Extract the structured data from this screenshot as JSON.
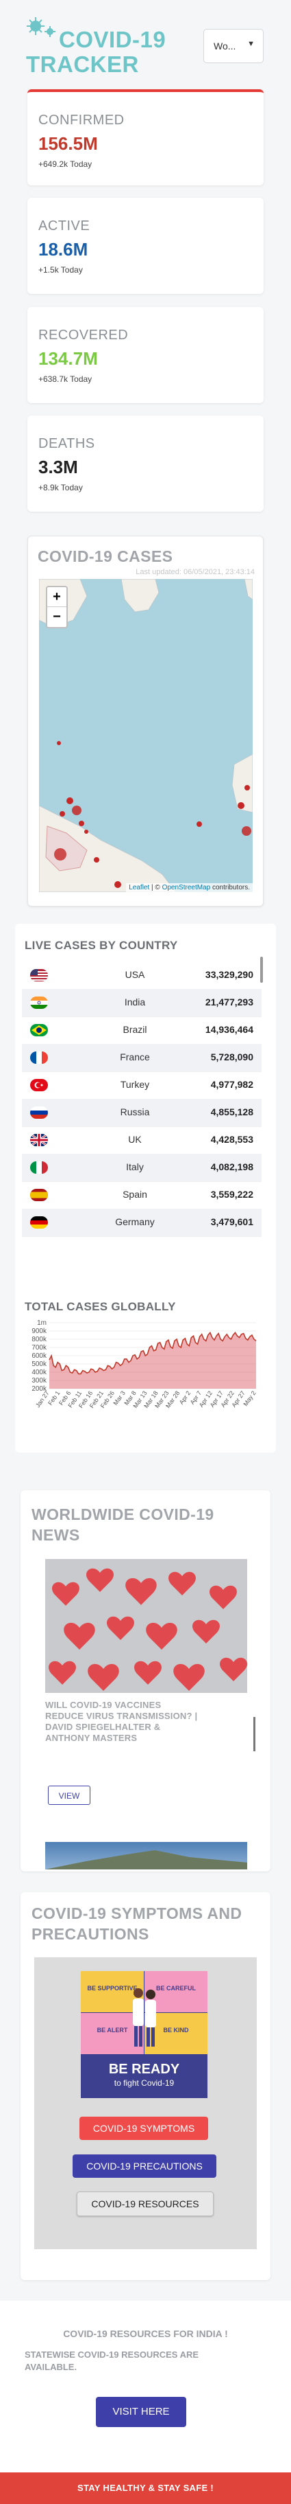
{
  "header": {
    "title_line1": "COVID-19",
    "title_line2": "TRACKER",
    "country_select": "Wo..."
  },
  "stats": [
    {
      "label": "CONFIRMED",
      "value": "156.5M",
      "today": "+649.2k Today",
      "color": "#c0392b"
    },
    {
      "label": "ACTIVE",
      "value": "18.6M",
      "today": "+1.5k Today",
      "color": "#1a5ea8"
    },
    {
      "label": "RECOVERED",
      "value": "134.7M",
      "today": "+638.7k Today",
      "color": "#7ac943"
    },
    {
      "label": "DEATHS",
      "value": "3.3M",
      "today": "+8.9k Today",
      "color": "#222222"
    }
  ],
  "map": {
    "title": "COVID-19 CASES",
    "last_updated": "Last updated: 06/05/2021, 23:43:14",
    "zoom_in": "+",
    "zoom_out": "−",
    "attribution_leaflet": "Leaflet",
    "attribution_sep": " | © ",
    "attribution_osm": "OpenStreetMap",
    "attribution_rest": " contributors."
  },
  "live_cases": {
    "title": "LIVE CASES BY COUNTRY",
    "rows": [
      {
        "country": "USA",
        "count": "33,329,290",
        "flag": "usa-flag-icon"
      },
      {
        "country": "India",
        "count": "21,477,293",
        "flag": "india-flag-icon"
      },
      {
        "country": "Brazil",
        "count": "14,936,464",
        "flag": "brazil-flag-icon"
      },
      {
        "country": "France",
        "count": "5,728,090",
        "flag": "france-flag-icon"
      },
      {
        "country": "Turkey",
        "count": "4,977,982",
        "flag": "turkey-flag-icon"
      },
      {
        "country": "Russia",
        "count": "4,855,128",
        "flag": "russia-flag-icon"
      },
      {
        "country": "UK",
        "count": "4,428,553",
        "flag": "uk-flag-icon"
      },
      {
        "country": "Italy",
        "count": "4,082,198",
        "flag": "italy-flag-icon"
      },
      {
        "country": "Spain",
        "count": "3,559,222",
        "flag": "spain-flag-icon"
      },
      {
        "country": "Germany",
        "count": "3,479,601",
        "flag": "germany-flag-icon"
      }
    ]
  },
  "chart_data": {
    "type": "area",
    "title": "TOTAL CASES GLOBALLY",
    "xlabel": "",
    "ylabel": "",
    "ylim": [
      200000,
      1000000
    ],
    "y_ticks": [
      "1m",
      "900k",
      "800k",
      "700k",
      "600k",
      "500k",
      "400k",
      "300k",
      "200k"
    ],
    "x_ticks": [
      "Jan 27",
      "Feb 1",
      "Feb 6",
      "Feb 11",
      "Feb 16",
      "Feb 21",
      "Feb 26",
      "Mar 3",
      "Mar 8",
      "Mar 13",
      "Mar 18",
      "Mar 23",
      "Mar 28",
      "Apr 2",
      "Apr 7",
      "Apr 12",
      "Apr 17",
      "Apr 22",
      "Apr 27",
      "May 2"
    ],
    "values": [
      550000,
      600000,
      480000,
      460000,
      520000,
      500000,
      420000,
      430000,
      480000,
      460000,
      400000,
      390000,
      430000,
      420000,
      380000,
      380000,
      420000,
      410000,
      390000,
      400000,
      440000,
      430000,
      400000,
      410000,
      450000,
      440000,
      420000,
      430000,
      480000,
      470000,
      440000,
      460000,
      520000,
      510000,
      480000,
      500000,
      560000,
      560000,
      520000,
      540000,
      600000,
      610000,
      560000,
      580000,
      650000,
      660000,
      600000,
      620000,
      700000,
      720000,
      660000,
      670000,
      750000,
      760000,
      700000,
      680000,
      770000,
      790000,
      710000,
      690000,
      780000,
      800000,
      720000,
      700000,
      790000,
      810000,
      740000,
      720000,
      820000,
      840000,
      760000,
      740000,
      830000,
      860000,
      800000,
      780000,
      850000,
      880000,
      820000,
      790000,
      840000,
      870000,
      800000,
      780000,
      830000,
      860000,
      820000,
      800000,
      850000,
      880000,
      840000,
      820000,
      860000,
      870000,
      810000,
      790000,
      830000,
      850000,
      800000,
      780000
    ],
    "color": "#d9535a"
  },
  "news": {
    "title_line1": "WORLDWIDE COVID-19",
    "title_line2": "NEWS",
    "headline_line1": "WILL COVID-19 VACCINES",
    "headline_line2": "REDUCE VIRUS TRANSMISSION? |",
    "headline_line3": "DAVID SPIEGELHALTER &",
    "headline_line4": "ANTHONY MASTERS",
    "view_button": "VIEW"
  },
  "symptoms": {
    "title_line1": "COVID-19 SYMPTOMS AND",
    "title_line2": "PRECAUTIONS",
    "poster": {
      "tiles": [
        "BE SUPPORTIVE",
        "BE CAREFUL",
        "BE ALERT",
        "BE KIND"
      ],
      "banner1": "BE READY",
      "banner2": "to fight Covid-19"
    },
    "btn_symptoms": "COVID-19 SYMPTOMS",
    "btn_precautions": "COVID-19 PRECAUTIONS",
    "btn_resources": "COVID-19 RESOURCES"
  },
  "india": {
    "title": "COVID-19 RESOURCES FOR INDIA !",
    "sub_line1": "STATEWISE COVID-19 RESOURCES ARE",
    "sub_line2": "AVAILABLE.",
    "button": "VISIT HERE"
  },
  "footer": {
    "text": "STAY HEALTHY & STAY SAFE !"
  },
  "colors": {
    "accent": "#6ec5c8",
    "red": "#e53935",
    "indigo": "#3f3fa9",
    "footer": "#e0433a"
  }
}
